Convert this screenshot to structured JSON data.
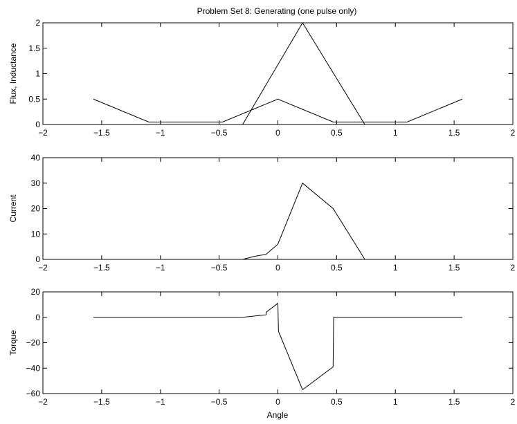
{
  "chart_data": [
    {
      "type": "line",
      "title": "Problem Set 8: Generating (one pulse only)",
      "xlabel": "",
      "ylabel": "Flux, Inductance",
      "xlim": [
        -2,
        2
      ],
      "ylim": [
        0,
        2
      ],
      "xticks": [
        "−2",
        "−1.5",
        "−1",
        "−0.5",
        "0",
        "0.5",
        "1",
        "1.5",
        "2"
      ],
      "yticks": [
        "0",
        "0.5",
        "1",
        "1.5",
        "2"
      ],
      "grid": false,
      "series": [
        {
          "x": [
            -1.57,
            -1.1,
            -0.47,
            0.0,
            0.47,
            1.1,
            1.57
          ],
          "y": [
            0.5,
            0.05,
            0.05,
            0.5,
            0.05,
            0.05,
            0.5
          ]
        },
        {
          "x": [
            -1.57,
            -0.3,
            0.21,
            0.74,
            1.57
          ],
          "y": [
            0,
            0,
            2.0,
            0,
            0
          ]
        }
      ]
    },
    {
      "type": "line",
      "title": "",
      "xlabel": "",
      "ylabel": "Current",
      "xlim": [
        -2,
        2
      ],
      "ylim": [
        0,
        40
      ],
      "xticks": [
        "−2",
        "−1.5",
        "−1",
        "−0.5",
        "0",
        "0.5",
        "1",
        "1.5",
        "2"
      ],
      "yticks": [
        "0",
        "10",
        "20",
        "30",
        "40"
      ],
      "grid": false,
      "series": [
        {
          "x": [
            -1.57,
            -0.3,
            -0.2,
            -0.1,
            0.0,
            0.21,
            0.47,
            0.74,
            1.57
          ],
          "y": [
            0,
            0,
            1.2,
            2.0,
            6.0,
            30.0,
            20.0,
            0,
            0
          ]
        }
      ]
    },
    {
      "type": "line",
      "title": "",
      "xlabel": "Angle",
      "ylabel": "Torque",
      "xlim": [
        -2,
        2
      ],
      "ylim": [
        -60,
        20
      ],
      "xticks": [
        "−2",
        "−1.5",
        "−1",
        "−0.5",
        "0",
        "0.5",
        "1",
        "1.5",
        "2"
      ],
      "yticks": [
        "−60",
        "−40",
        "−20",
        "0",
        "20"
      ],
      "grid": false,
      "series": [
        {
          "x": [
            -1.57,
            -0.3,
            -0.1,
            -0.1,
            0.0,
            0.005,
            0.21,
            0.47,
            0.475,
            1.57
          ],
          "y": [
            0,
            0,
            2,
            4,
            11,
            -11,
            -57,
            -39,
            0,
            0
          ]
        }
      ]
    }
  ]
}
